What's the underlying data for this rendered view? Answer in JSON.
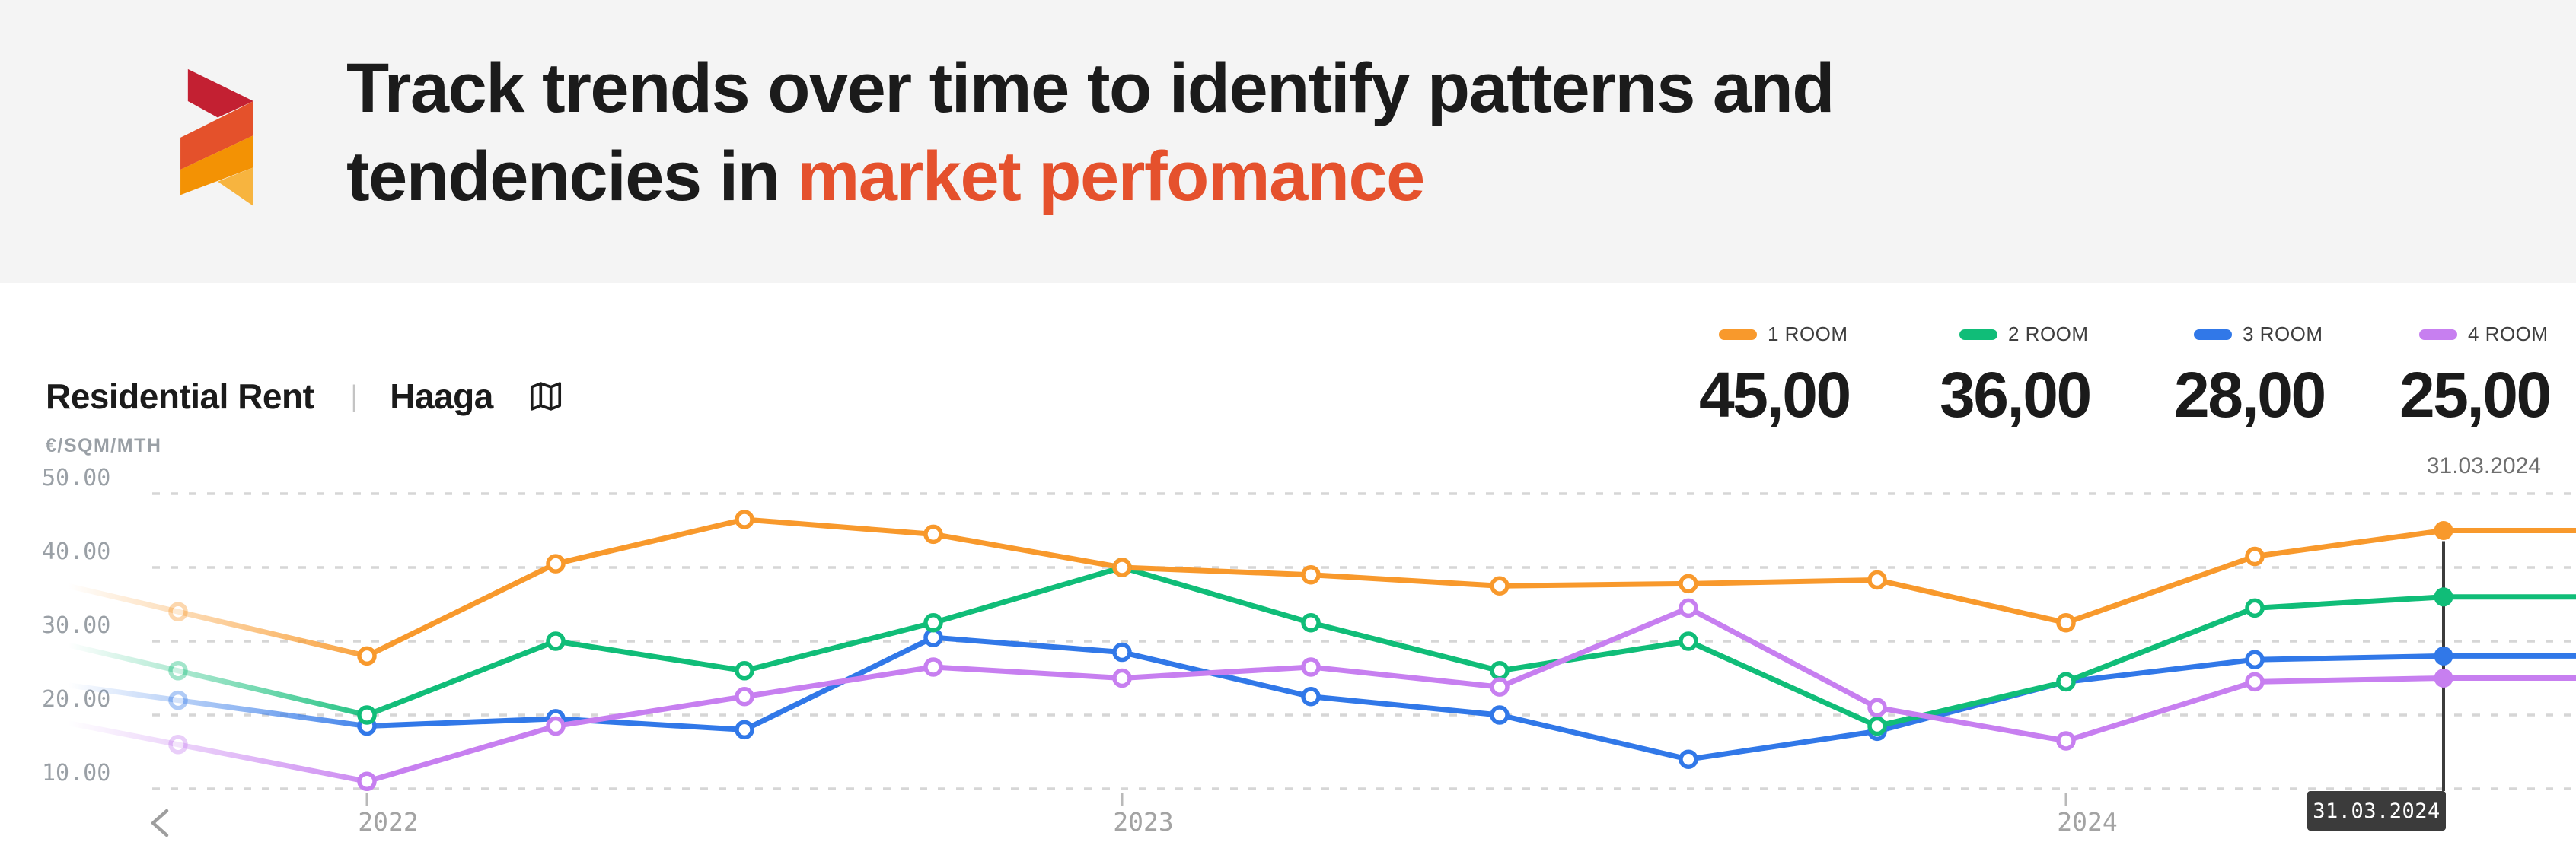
{
  "hero": {
    "line1": "Track trends over time to identify patterns and",
    "line2_prefix": "tendencies in ",
    "line2_highlight": "market perfomance",
    "highlight_color": "#E5512D"
  },
  "logo": {
    "colors": {
      "red": "#C32032",
      "vermilion": "#E4512B",
      "orange": "#F39204",
      "amber": "#F7B43F"
    }
  },
  "subheader": {
    "title": "Residential Rent",
    "separator": "|",
    "location": "Haaga",
    "unit": "€/SQM/MTH",
    "map_icon": "map-icon"
  },
  "chart_data": {
    "type": "line",
    "title": "Residential Rent – Haaga",
    "xlabel": "",
    "ylabel": "€/SQM/MTH",
    "ylim": [
      10,
      50
    ],
    "grid": "dashed-horizontal",
    "legend_position": "top-right",
    "yticks": [
      50,
      40,
      30,
      20,
      10
    ],
    "ytick_labels": [
      "50.00",
      "40.00",
      "30.00",
      "20.00",
      "10.00"
    ],
    "xticks": [
      {
        "index": 1,
        "label": "2022"
      },
      {
        "index": 5,
        "label": "2023"
      },
      {
        "index": 10,
        "label": "2024"
      }
    ],
    "series": [
      {
        "name": "1 ROOM",
        "color": "#F8992C",
        "current": "45,00",
        "values": [
          34,
          28,
          40.5,
          46.5,
          44.5,
          40,
          39,
          37.5,
          37.8,
          38.3,
          32.5,
          41.5,
          45
        ]
      },
      {
        "name": "2 ROOM",
        "color": "#10BD78",
        "current": "36,00",
        "values": [
          26,
          20,
          30,
          26,
          32.5,
          40,
          32.5,
          26,
          30,
          18.5,
          24.5,
          34.5,
          36
        ]
      },
      {
        "name": "3 ROOM",
        "color": "#3178E8",
        "current": "28,00",
        "values": [
          22,
          18.5,
          19.5,
          18,
          30.5,
          28.5,
          22.5,
          20,
          14,
          17.8,
          24.5,
          27.5,
          28
        ]
      },
      {
        "name": "4 ROOM",
        "color": "#C77FF0",
        "current": "25,00",
        "values": [
          16,
          11,
          18.5,
          22.5,
          26.5,
          25,
          26.5,
          23.8,
          34.5,
          21,
          16.5,
          24.5,
          25
        ]
      }
    ],
    "cursor": {
      "index": 12,
      "date": "31.03.2024"
    }
  }
}
